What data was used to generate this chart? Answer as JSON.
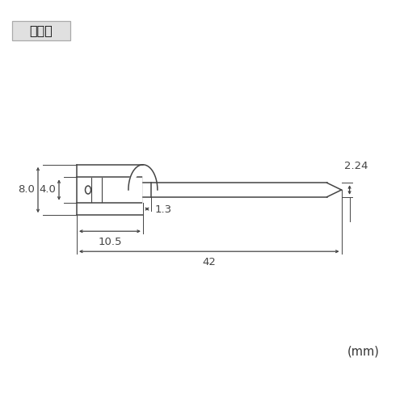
{
  "title": "寸法図",
  "title_box_color": "#e0e0e0",
  "line_color": "#444444",
  "dim_color": "#444444",
  "background_color": "#ffffff",
  "unit_label": "(mm)",
  "labels": {
    "d1": "8.0",
    "d2": "4.0",
    "L1": "10.5",
    "L2": "1.3",
    "L_total": "42",
    "d_pin": "2.24"
  },
  "fig_width": 5.0,
  "fig_height": 5.0,
  "dpi": 100
}
